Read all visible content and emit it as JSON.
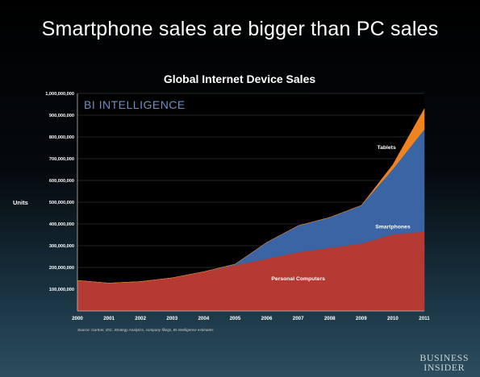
{
  "page": {
    "headline": "Smartphone sales are bigger than PC sales",
    "brand_line1": "BUSINESS",
    "brand_line2": "INSIDER"
  },
  "chart_data": {
    "type": "area",
    "stacked": true,
    "title": "Global Internet Device Sales",
    "watermark": "BI INTELLIGENCE",
    "ylabel": "Units",
    "xlabel": "",
    "source": "Source: Gartner, IDC, Strategy Analytics, company filings, BI Intelligence estimates",
    "x": [
      2000,
      2001,
      2002,
      2003,
      2004,
      2005,
      2006,
      2007,
      2008,
      2009,
      2010,
      2011
    ],
    "ylim": [
      0,
      1000000000
    ],
    "yticks": [
      0,
      100000000,
      200000000,
      300000000,
      400000000,
      500000000,
      600000000,
      700000000,
      800000000,
      900000000,
      1000000000
    ],
    "ytick_labels": [
      "",
      "100,000,000",
      "200,000,000",
      "300,000,000",
      "400,000,000",
      "500,000,000",
      "600,000,000",
      "700,000,000",
      "800,000,000",
      "900,000,000",
      "1,000,000,000"
    ],
    "xtick_labels": [
      "2000",
      "2001",
      "2002",
      "2003",
      "2004",
      "2005",
      "2006",
      "2007",
      "2008",
      "2009",
      "2010",
      "2011"
    ],
    "grid": true,
    "series": [
      {
        "name": "Personal Computers",
        "color": "#b53a33",
        "values": [
          140000000,
          128000000,
          135000000,
          152000000,
          180000000,
          210000000,
          240000000,
          270000000,
          290000000,
          310000000,
          352000000,
          365000000
        ]
      },
      {
        "name": "Smartphones",
        "color": "#3a64a3",
        "values": [
          0,
          0,
          0,
          0,
          0,
          5000000,
          75000000,
          122000000,
          140000000,
          175000000,
          300000000,
          470000000
        ]
      },
      {
        "name": "Tablets",
        "color": "#f0831e",
        "values": [
          0,
          0,
          0,
          0,
          0,
          0,
          0,
          0,
          0,
          0,
          20000000,
          95000000
        ]
      }
    ],
    "series_labels": [
      {
        "text": "Personal Computers",
        "x": 2007.0,
        "y": 140000000
      },
      {
        "text": "Smartphones",
        "x": 2010.0,
        "y": 380000000
      },
      {
        "text": "Tablets",
        "x": 2009.8,
        "y": 745000000
      }
    ]
  }
}
